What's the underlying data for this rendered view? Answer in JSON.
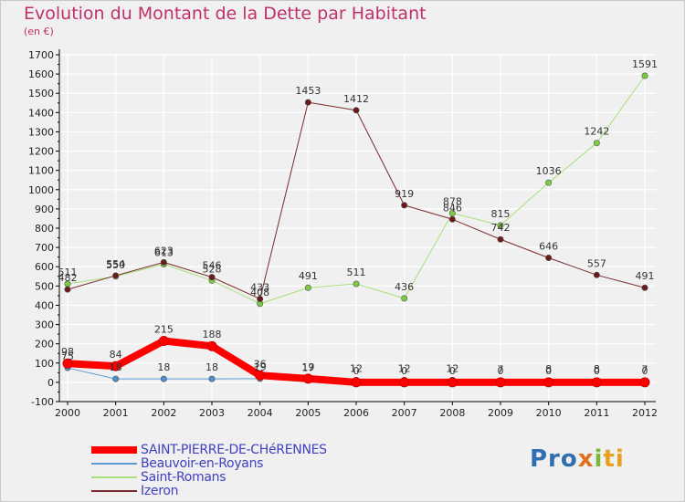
{
  "header": {
    "title": "Evolution du Montant de la Dette par Habitant",
    "subtitle": "(en €)"
  },
  "logo": {
    "text": "Proxiti",
    "parts": [
      "Pro",
      "x",
      "i",
      "ti"
    ]
  },
  "colors": {
    "title": "#c0306a",
    "axis": "#000000",
    "grid": "#ffffff",
    "plot_bg": "#f0f0f0",
    "label": "#333333"
  },
  "chart_data": {
    "type": "line",
    "title": "Evolution du Montant de la Dette par Habitant",
    "subtitle": "(en €)",
    "xlabel": "",
    "ylabel": "",
    "x": [
      "2000",
      "2001",
      "2002",
      "2003",
      "2004",
      "2005",
      "2006",
      "2007",
      "2008",
      "2009",
      "2010",
      "2011",
      "2012"
    ],
    "ylim": [
      -100,
      1700
    ],
    "yticks": [
      -100,
      0,
      100,
      200,
      300,
      400,
      500,
      600,
      700,
      800,
      900,
      1000,
      1100,
      1200,
      1300,
      1400,
      1500,
      1600,
      1700
    ],
    "grid": true,
    "legend_position": "bottom-left",
    "series": [
      {
        "name": "SAINT-PIERRE-DE-CHéRENNES",
        "color": "#ff0000",
        "marker_color": "#ff0000",
        "width": 8,
        "values": [
          98,
          84,
          215,
          188,
          36,
          19,
          0,
          0,
          0,
          0,
          0,
          0,
          0
        ],
        "labels": [
          "98",
          "84",
          "215",
          "188",
          "36",
          "19",
          "0",
          "0",
          "0",
          "0",
          "0",
          "0",
          "0"
        ]
      },
      {
        "name": "Beauvoir-en-Royans",
        "color": "#5b9bd5",
        "marker_color": "#4a90d0",
        "width": 1,
        "values": [
          75,
          18,
          18,
          18,
          19,
          17,
          12,
          12,
          12,
          7,
          8,
          8,
          7
        ],
        "labels": [
          "75",
          "18",
          "18",
          "18",
          "19",
          "17",
          "12",
          "12",
          "12",
          "7",
          "8",
          "8",
          "7"
        ]
      },
      {
        "name": "Saint-Romans",
        "color": "#a8e07a",
        "marker_color": "#7acc40",
        "width": 1,
        "values": [
          511,
          550,
          613,
          528,
          408,
          491,
          511,
          436,
          878,
          815,
          1036,
          1242,
          1591
        ],
        "labels": [
          "511",
          "550",
          "613",
          "528",
          "408",
          "491",
          "511",
          "436",
          "878",
          "815",
          "1036",
          "1242",
          "1591"
        ]
      },
      {
        "name": "Izeron",
        "color": "#7a2a2a",
        "marker_color": "#6b1a1a",
        "width": 1,
        "values": [
          482,
          554,
          623,
          546,
          433,
          1453,
          1412,
          919,
          846,
          742,
          646,
          557,
          491
        ],
        "labels": [
          "482",
          "554",
          "623",
          "546",
          "433",
          "1453",
          "1412",
          "919",
          "846",
          "742",
          "646",
          "557",
          "491"
        ]
      }
    ]
  }
}
